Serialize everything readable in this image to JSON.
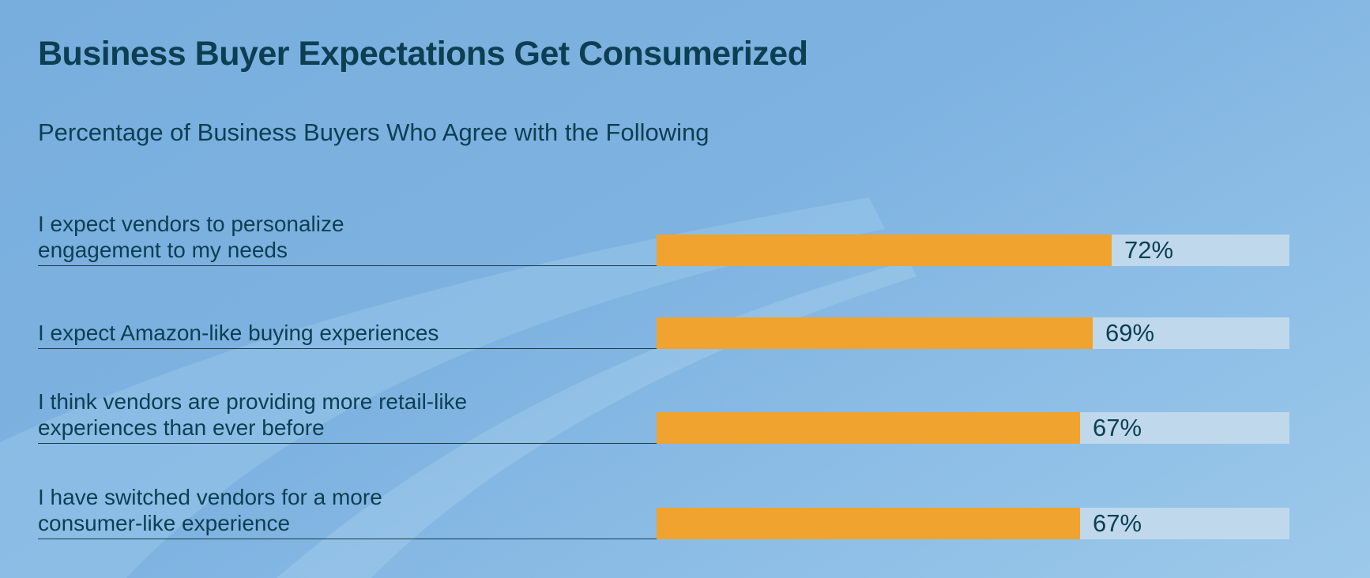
{
  "header": {
    "title": "Business Buyer Expectations Get Consumerized",
    "subtitle": "Percentage of Business Buyers Who Agree with the Following"
  },
  "colors": {
    "bar_fill": "#f0a32e",
    "bar_track": "#bfd8ec",
    "text": "#0c3f52",
    "background": "#7eb2e0"
  },
  "chart_data": {
    "type": "bar",
    "orientation": "horizontal",
    "title": "Business Buyer Expectations Get Consumerized",
    "subtitle": "Percentage of Business Buyers Who Agree with the Following",
    "categories": [
      "I expect vendors to personalize\nengagement to my needs",
      "I expect Amazon-like buying experiences",
      "I think vendors are providing more retail-like\nexperiences than ever before",
      "I have switched vendors for a more\nconsumer-like experience"
    ],
    "values": [
      72,
      69,
      67,
      67
    ],
    "value_labels": [
      "72%",
      "69%",
      "67%",
      "67%"
    ],
    "xlim": [
      0,
      100
    ],
    "unit": "%",
    "grid": false,
    "legend": "none"
  }
}
